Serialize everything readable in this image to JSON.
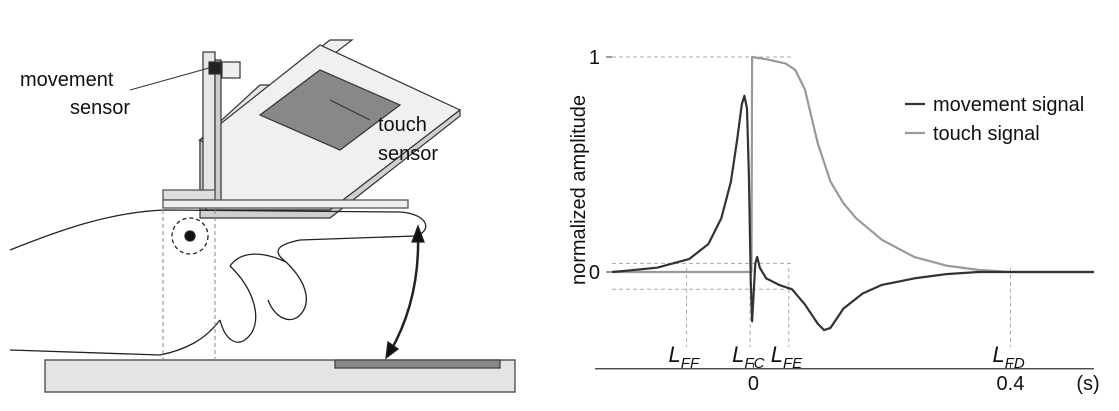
{
  "diagram": {
    "movement_sensor_label": [
      "movement",
      "sensor"
    ],
    "touch_sensor_label": [
      "touch",
      "sensor"
    ]
  },
  "chart_data": {
    "type": "line",
    "y_label": "normalized amplitude",
    "x_label": "(s)",
    "xlim": [
      -0.22,
      0.53
    ],
    "ylim": [
      -0.45,
      1.05
    ],
    "xticks": [
      0,
      0.4
    ],
    "yticks": [
      0,
      1
    ],
    "legend": "upper right",
    "series": [
      {
        "name": "movement signal",
        "color": "#333333",
        "x": [
          -0.22,
          -0.2,
          -0.15,
          -0.1,
          -0.07,
          -0.05,
          -0.035,
          -0.025,
          -0.018,
          -0.014,
          -0.01,
          -0.007,
          -0.004,
          -0.002,
          0.0,
          0.003,
          0.006,
          0.01,
          0.02,
          0.04,
          0.06,
          0.08,
          0.1,
          0.11,
          0.12,
          0.14,
          0.17,
          0.2,
          0.25,
          0.3,
          0.35,
          0.4,
          0.53
        ],
        "values": [
          0,
          0.005,
          0.02,
          0.06,
          0.13,
          0.25,
          0.42,
          0.62,
          0.78,
          0.82,
          0.76,
          0.45,
          -0.05,
          -0.23,
          -0.12,
          0.04,
          0.07,
          0.02,
          -0.03,
          -0.06,
          -0.08,
          -0.15,
          -0.24,
          -0.27,
          -0.26,
          -0.17,
          -0.1,
          -0.06,
          -0.03,
          -0.01,
          0,
          0,
          0
        ]
      },
      {
        "name": "touch signal",
        "color": "#999999",
        "x": [
          -0.22,
          -0.003,
          -0.002,
          0.02,
          0.05,
          0.065,
          0.08,
          0.1,
          0.12,
          0.14,
          0.16,
          0.2,
          0.25,
          0.3,
          0.35,
          0.4,
          0.53
        ],
        "values": [
          0,
          0,
          1,
          0.99,
          0.97,
          0.94,
          0.85,
          0.6,
          0.42,
          0.32,
          0.25,
          0.15,
          0.07,
          0.03,
          0.01,
          0,
          0
        ]
      }
    ],
    "reference_lines": [
      1,
      0.04,
      -0.08
    ],
    "annotations": [
      {
        "text": "L",
        "sub": "FF",
        "x": -0.104
      },
      {
        "text": "L",
        "sub": "FC",
        "x": -0.005
      },
      {
        "text": "L",
        "sub": "FE",
        "x": 0.055
      },
      {
        "text": "L",
        "sub": "FD",
        "x": 0.4
      }
    ]
  }
}
